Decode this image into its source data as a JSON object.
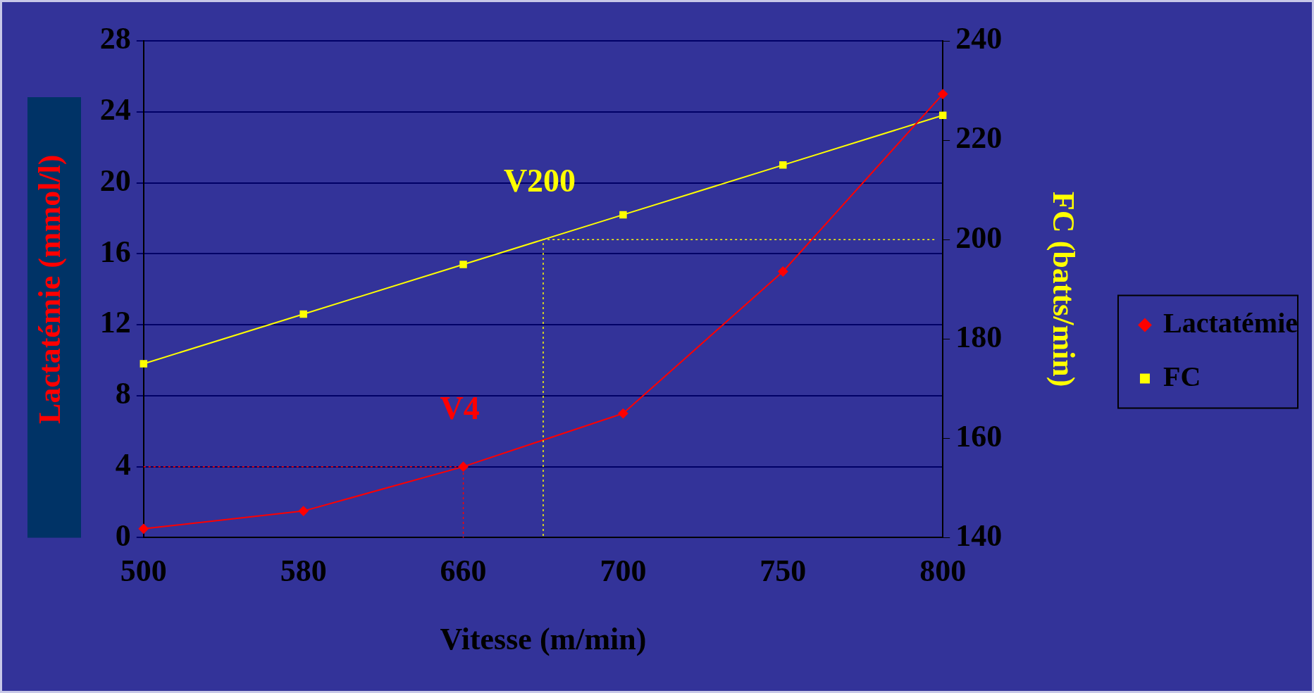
{
  "chart_data": {
    "type": "line",
    "xlabel": "Vitesse (m/min)",
    "ylabel": "Lactatémie (mmol/l)",
    "y2label": "FC (batts/min)",
    "categories": [
      "500",
      "580",
      "660",
      "700",
      "750",
      "800"
    ],
    "series": [
      {
        "name": "Lactatémie",
        "color": "#ff0000",
        "marker": "diamond",
        "values": [
          0.5,
          1.5,
          4,
          7,
          15,
          25
        ]
      },
      {
        "name": "FC",
        "color": "#ffff00",
        "marker": "square",
        "axis": "y2",
        "values": [
          175,
          185,
          195,
          205,
          215,
          225
        ]
      }
    ],
    "ylim": [
      0,
      28
    ],
    "yticks": [
      0,
      4,
      8,
      12,
      16,
      20,
      24,
      28
    ],
    "y2lim": [
      140,
      240
    ],
    "y2ticks": [
      140,
      160,
      180,
      200,
      220,
      240
    ],
    "ref_lines": [
      {
        "axis": "y",
        "value": 4,
        "color": "#ff0000",
        "line_style": "dotted"
      },
      {
        "axis": "y2",
        "value": 200,
        "color": "#ffff00",
        "line_style": "dotted"
      }
    ],
    "annotations": [
      "V4",
      "V200"
    ],
    "grid": "y",
    "legend": "right",
    "line_style": "solid"
  }
}
